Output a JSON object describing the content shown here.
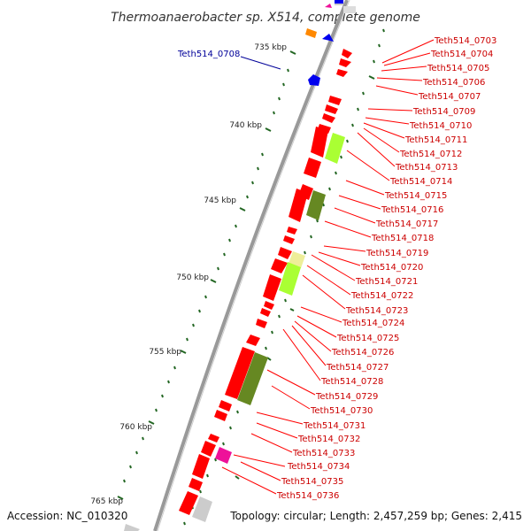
{
  "title": "Thermoanaerobacter sp. X514, complete genome",
  "footer": {
    "accession": "Accession: NC_010320",
    "topology": "Topology: circular; Length: 2,457,259 bp; Genes: 2,415"
  },
  "colors": {
    "backbone": "#888888",
    "cds": "#ff0000",
    "label_red": "#cc0000",
    "label_blue": "#000099",
    "tick": "#226622",
    "lime": "#aaff33",
    "olive": "#668822",
    "pale_yellow": "#eeee99",
    "magenta": "#ee1199",
    "blue": "#0000ee",
    "orange": "#ff8800",
    "grey": "#cccccc"
  },
  "scale_marks": [
    {
      "label": "735 kbp",
      "kbp": 735
    },
    {
      "label": "740 kbp",
      "kbp": 740
    },
    {
      "label": "745 kbp",
      "kbp": 745
    },
    {
      "label": "750 kbp",
      "kbp": 750
    },
    {
      "label": "755 kbp",
      "kbp": 755
    },
    {
      "label": "760 kbp",
      "kbp": 760
    },
    {
      "label": "765 kbp",
      "kbp": 765
    }
  ],
  "gene_labels_right": [
    "Teth514_0703",
    "Teth514_0704",
    "Teth514_0705",
    "Teth514_0706",
    "Teth514_0707",
    "Teth514_0709",
    "Teth514_0710",
    "Teth514_0711",
    "Teth514_0712",
    "Teth514_0713",
    "Teth514_0714",
    "Teth514_0715",
    "Teth514_0716",
    "Teth514_0717",
    "Teth514_0718",
    "Teth514_0719",
    "Teth514_0720",
    "Teth514_0721",
    "Teth514_0722",
    "Teth514_0723",
    "Teth514_0724",
    "Teth514_0725",
    "Teth514_0726",
    "Teth514_0727",
    "Teth514_0728",
    "Teth514_0729",
    "Teth514_0730",
    "Teth514_0731",
    "Teth514_0732",
    "Teth514_0733",
    "Teth514_0734",
    "Teth514_0735",
    "Teth514_0736"
  ],
  "gene_labels_left": [
    "Teth514_0708"
  ]
}
